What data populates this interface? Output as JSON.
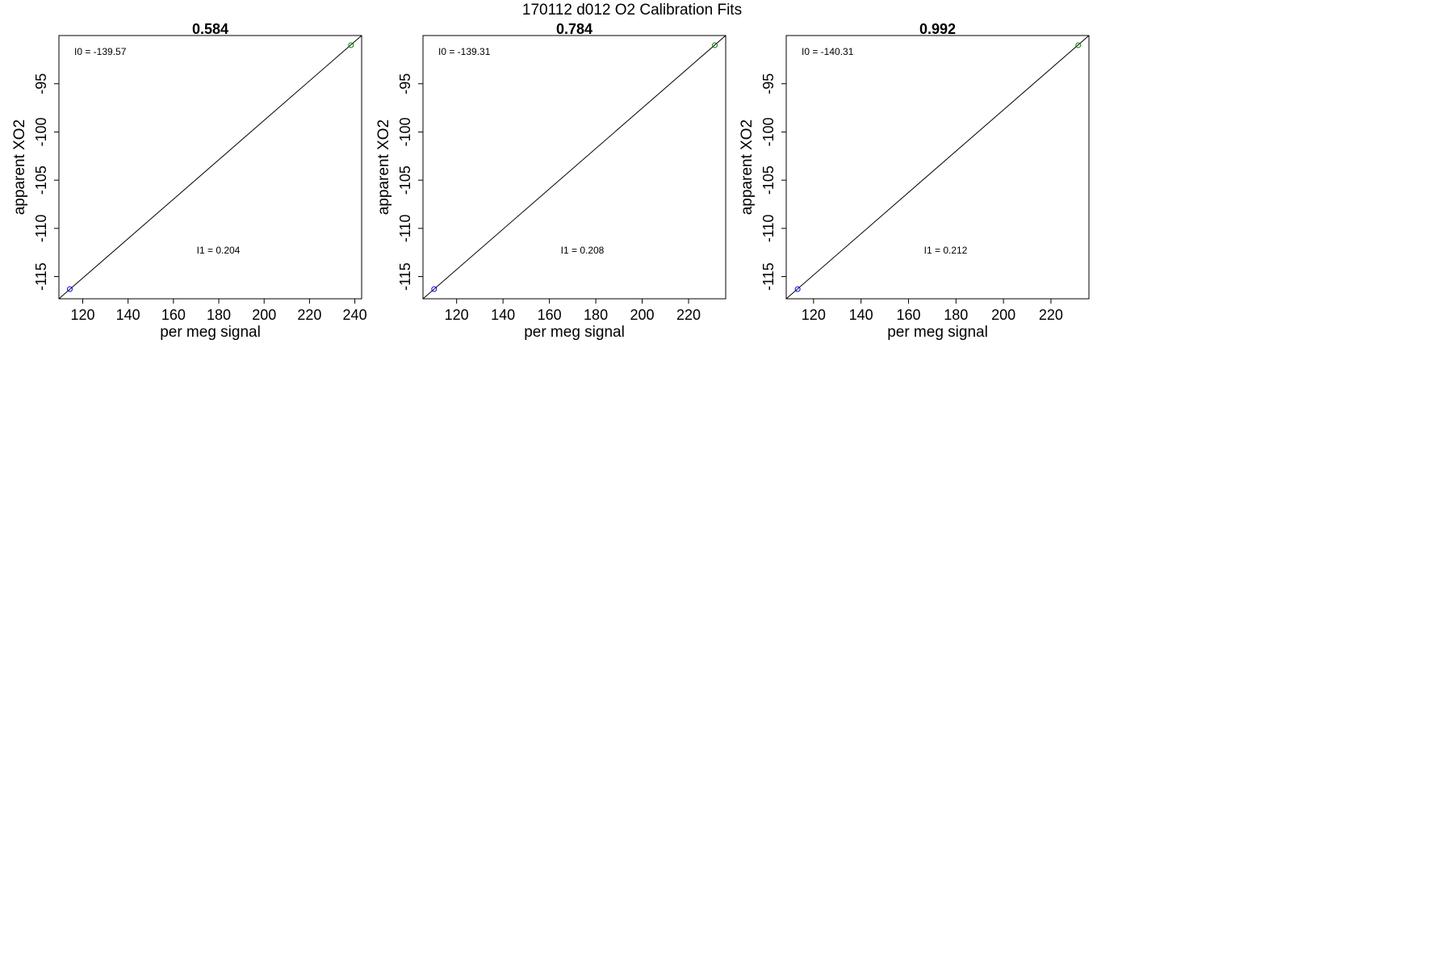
{
  "figure": {
    "title": "170112   d012   O2 Calibration Fits"
  },
  "chart_data": [
    {
      "type": "scatter",
      "title": "0.584",
      "xlabel": "per meg signal",
      "ylabel": "apparent XO2",
      "xlim": [
        109.5,
        243
      ],
      "ylim": [
        -117.3,
        -90.0
      ],
      "xticks": [
        120,
        140,
        160,
        180,
        200,
        220,
        240
      ],
      "yticks": [
        -115,
        -110,
        -105,
        -100,
        -95
      ],
      "grid": false,
      "points": [
        {
          "x": 114.3,
          "y": -116.3,
          "color": "#0000ff"
        },
        {
          "x": 238.3,
          "y": -91.0,
          "color": "#008000"
        }
      ],
      "fit_line": {
        "x0": 109.5,
        "y0": -117.3,
        "x1": 243,
        "y1": -90.0
      },
      "annotations": {
        "i0": "I0 =  -139.57",
        "i1": "I1 =  0.204"
      }
    },
    {
      "type": "scatter",
      "title": "0.784",
      "xlabel": "per meg signal",
      "ylabel": "apparent XO2",
      "xlim": [
        105.5,
        236
      ],
      "ylim": [
        -117.3,
        -90.0
      ],
      "xticks": [
        120,
        140,
        160,
        180,
        200,
        220
      ],
      "yticks": [
        -115,
        -110,
        -105,
        -100,
        -95
      ],
      "grid": false,
      "points": [
        {
          "x": 110.3,
          "y": -116.3,
          "color": "#0000ff"
        },
        {
          "x": 231.3,
          "y": -91.0,
          "color": "#008000"
        }
      ],
      "fit_line": {
        "x0": 105.5,
        "y0": -117.3,
        "x1": 236,
        "y1": -90.0
      },
      "annotations": {
        "i0": "I0 =  -139.31",
        "i1": "I1 =  0.208"
      }
    },
    {
      "type": "scatter",
      "title": "0.992",
      "xlabel": "per meg signal",
      "ylabel": "apparent XO2",
      "xlim": [
        108.5,
        236
      ],
      "ylim": [
        -117.3,
        -90.0
      ],
      "xticks": [
        120,
        140,
        160,
        180,
        200,
        220
      ],
      "yticks": [
        -115,
        -110,
        -105,
        -100,
        -95
      ],
      "grid": false,
      "points": [
        {
          "x": 113.3,
          "y": -116.3,
          "color": "#0000ff"
        },
        {
          "x": 231.5,
          "y": -91.0,
          "color": "#008000"
        }
      ],
      "fit_line": {
        "x0": 108.5,
        "y0": -117.3,
        "x1": 236,
        "y1": -90.0
      },
      "annotations": {
        "i0": "I0 =  -140.31",
        "i1": "I1 =  0.212"
      }
    }
  ]
}
